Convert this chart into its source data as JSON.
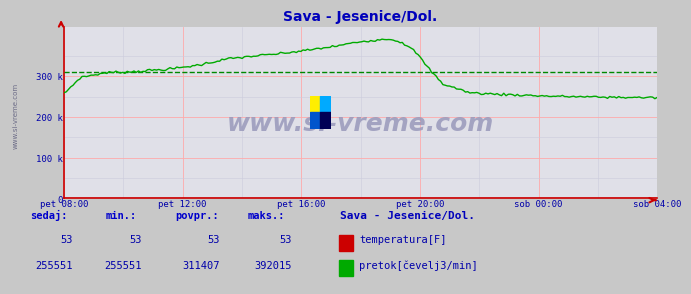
{
  "title": "Sava - Jesenice/Dol.",
  "bg_color": "#c8c8c8",
  "plot_bg_color": "#e0e0e8",
  "grid_color_major": "#ffaaaa",
  "grid_color_minor": "#ccccdd",
  "flow_color": "#00aa00",
  "temp_color": "#cc0000",
  "avg_line_color": "#008800",
  "avg_value": 311407,
  "ymax": 420000,
  "ytick_vals": [
    0,
    100000,
    200000,
    300000
  ],
  "ytick_labels": [
    "0",
    "100 k",
    "200 k",
    "300 k"
  ],
  "xtick_labels": [
    "pet 08:00",
    "pet 12:00",
    "pet 16:00",
    "pet 20:00",
    "sob 00:00",
    "sob 04:00"
  ],
  "title_color": "#0000bb",
  "axis_color": "#cc0000",
  "tick_label_color": "#0000aa",
  "watermark_text": "www.si-vreme.com",
  "watermark_color": "#9999bb",
  "footer_label_color": "#0000cc",
  "footer_value_color": "#0000aa",
  "sedaj": 255551,
  "min_val": 255551,
  "povpr": 311407,
  "maks": 392015,
  "temp_sedaj": 53,
  "temp_min": 53,
  "temp_povpr": 53,
  "temp_maks": 53,
  "n_points": 264
}
